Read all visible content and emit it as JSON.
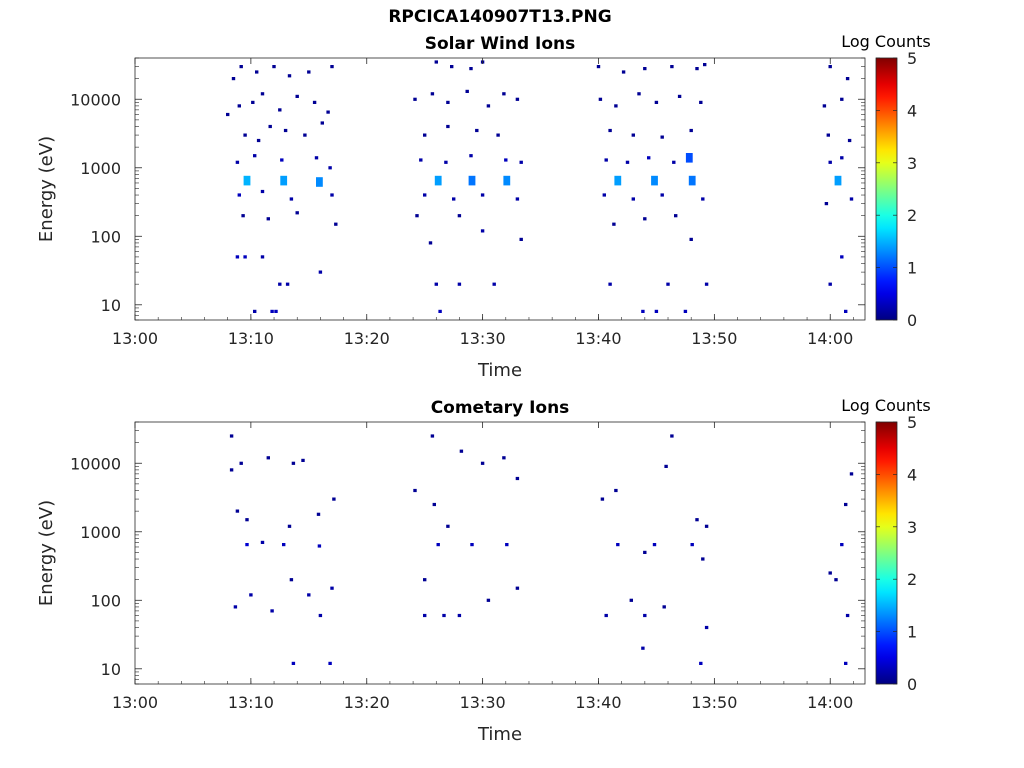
{
  "figure": {
    "title": "RPCICA140907T13.PNG"
  },
  "panels": [
    {
      "title": "Solar Wind Ions",
      "xlabel": "Time",
      "ylabel": "Energy (eV)",
      "colorbar_label": "Log Counts"
    },
    {
      "title": "Cometary Ions",
      "xlabel": "Time",
      "ylabel": "Energy (eV)",
      "colorbar_label": "Log Counts"
    }
  ],
  "chart_data": [
    {
      "type": "heatmap",
      "title": "Solar Wind Ions",
      "xlabel": "Time",
      "ylabel": "Energy (eV)",
      "xlim": [
        "13:00",
        "14:03"
      ],
      "xticks": [
        "13:00",
        "13:10",
        "13:20",
        "13:30",
        "13:40",
        "13:50",
        "14:00"
      ],
      "ylim": [
        6,
        40000
      ],
      "yscale": "log",
      "yticks": [
        10,
        100,
        1000,
        10000
      ],
      "ytick_labels": [
        "10",
        "100",
        "1000",
        "10000"
      ],
      "colorbar": {
        "label": "Log Counts",
        "range": [
          0,
          5
        ],
        "ticks": [
          0,
          1,
          2,
          3,
          4,
          5
        ],
        "colormap": "jet"
      },
      "points": [
        {
          "t": "13:09:10",
          "e": 30000,
          "v": 0.1
        },
        {
          "t": "13:08:30",
          "e": 20000,
          "v": 0.1
        },
        {
          "t": "13:10:30",
          "e": 25000,
          "v": 0.1
        },
        {
          "t": "13:12:00",
          "e": 30000,
          "v": 0.1
        },
        {
          "t": "13:13:20",
          "e": 22000,
          "v": 0.1
        },
        {
          "t": "13:15:00",
          "e": 25000,
          "v": 0.1
        },
        {
          "t": "13:17:00",
          "e": 30000,
          "v": 0.1
        },
        {
          "t": "13:08:00",
          "e": 6000,
          "v": 0.1
        },
        {
          "t": "13:09:00",
          "e": 8000,
          "v": 0.1
        },
        {
          "t": "13:10:10",
          "e": 9000,
          "v": 0.1
        },
        {
          "t": "13:11:00",
          "e": 12000,
          "v": 0.1
        },
        {
          "t": "13:12:30",
          "e": 7000,
          "v": 0.1
        },
        {
          "t": "13:14:00",
          "e": 11000,
          "v": 0.1
        },
        {
          "t": "13:15:30",
          "e": 9000,
          "v": 0.1
        },
        {
          "t": "13:16:40",
          "e": 6500,
          "v": 0.1
        },
        {
          "t": "13:09:30",
          "e": 3000,
          "v": 0.1
        },
        {
          "t": "13:10:40",
          "e": 2500,
          "v": 0.1
        },
        {
          "t": "13:11:40",
          "e": 4000,
          "v": 0.1
        },
        {
          "t": "13:13:00",
          "e": 3500,
          "v": 0.1
        },
        {
          "t": "13:14:40",
          "e": 3000,
          "v": 0.1
        },
        {
          "t": "13:16:10",
          "e": 4500,
          "v": 0.1
        },
        {
          "t": "13:08:50",
          "e": 1200,
          "v": 0.2
        },
        {
          "t": "13:10:20",
          "e": 1500,
          "v": 0.2
        },
        {
          "t": "13:12:40",
          "e": 1300,
          "v": 0.3
        },
        {
          "t": "13:15:40",
          "e": 1400,
          "v": 0.2
        },
        {
          "t": "13:16:50",
          "e": 1000,
          "v": 0.2
        },
        {
          "t": "13:09:40",
          "e": 650,
          "v": 1.5
        },
        {
          "t": "13:12:50",
          "e": 650,
          "v": 1.4
        },
        {
          "t": "13:15:55",
          "e": 620,
          "v": 1.3
        },
        {
          "t": "13:09:00",
          "e": 400,
          "v": 0.3
        },
        {
          "t": "13:11:00",
          "e": 450,
          "v": 0.2
        },
        {
          "t": "13:13:30",
          "e": 350,
          "v": 0.2
        },
        {
          "t": "13:17:00",
          "e": 400,
          "v": 0.2
        },
        {
          "t": "13:09:20",
          "e": 200,
          "v": 0.1
        },
        {
          "t": "13:11:30",
          "e": 180,
          "v": 0.1
        },
        {
          "t": "13:14:00",
          "e": 220,
          "v": 0.1
        },
        {
          "t": "13:17:20",
          "e": 150,
          "v": 0.1
        },
        {
          "t": "13:08:50",
          "e": 50,
          "v": 0.3
        },
        {
          "t": "13:09:30",
          "e": 50,
          "v": 0.3
        },
        {
          "t": "13:11:00",
          "e": 50,
          "v": 0.2
        },
        {
          "t": "13:12:30",
          "e": 20,
          "v": 0.2
        },
        {
          "t": "13:13:10",
          "e": 20,
          "v": 0.2
        },
        {
          "t": "13:16:00",
          "e": 30,
          "v": 0.2
        },
        {
          "t": "13:10:20",
          "e": 8,
          "v": 0.2
        },
        {
          "t": "13:11:50",
          "e": 8,
          "v": 0.3
        },
        {
          "t": "13:12:10",
          "e": 8,
          "v": 0.3
        },
        {
          "t": "13:26:00",
          "e": 35000,
          "v": 0.1
        },
        {
          "t": "13:27:20",
          "e": 30000,
          "v": 0.1
        },
        {
          "t": "13:29:00",
          "e": 28000,
          "v": 0.1
        },
        {
          "t": "13:30:00",
          "e": 35000,
          "v": 0.1
        },
        {
          "t": "13:24:10",
          "e": 10000,
          "v": 0.1
        },
        {
          "t": "13:25:40",
          "e": 12000,
          "v": 0.1
        },
        {
          "t": "13:27:00",
          "e": 9000,
          "v": 0.1
        },
        {
          "t": "13:28:40",
          "e": 13000,
          "v": 0.1
        },
        {
          "t": "13:30:30",
          "e": 8000,
          "v": 0.1
        },
        {
          "t": "13:31:50",
          "e": 12000,
          "v": 0.1
        },
        {
          "t": "13:33:00",
          "e": 10000,
          "v": 0.1
        },
        {
          "t": "13:25:00",
          "e": 3000,
          "v": 0.1
        },
        {
          "t": "13:27:00",
          "e": 4000,
          "v": 0.1
        },
        {
          "t": "13:29:30",
          "e": 3500,
          "v": 0.1
        },
        {
          "t": "13:31:20",
          "e": 3000,
          "v": 0.1
        },
        {
          "t": "13:24:40",
          "e": 1300,
          "v": 0.2
        },
        {
          "t": "13:26:50",
          "e": 1200,
          "v": 0.2
        },
        {
          "t": "13:29:00",
          "e": 1500,
          "v": 0.2
        },
        {
          "t": "13:32:00",
          "e": 1300,
          "v": 0.3
        },
        {
          "t": "13:33:20",
          "e": 1200,
          "v": 0.2
        },
        {
          "t": "13:26:10",
          "e": 650,
          "v": 1.4
        },
        {
          "t": "13:29:05",
          "e": 650,
          "v": 1.2
        },
        {
          "t": "13:32:05",
          "e": 650,
          "v": 1.3
        },
        {
          "t": "13:25:00",
          "e": 400,
          "v": 0.2
        },
        {
          "t": "13:27:30",
          "e": 350,
          "v": 0.2
        },
        {
          "t": "13:30:00",
          "e": 400,
          "v": 0.2
        },
        {
          "t": "13:33:00",
          "e": 350,
          "v": 0.2
        },
        {
          "t": "13:24:20",
          "e": 200,
          "v": 0.1
        },
        {
          "t": "13:28:00",
          "e": 200,
          "v": 0.1
        },
        {
          "t": "13:30:00",
          "e": 120,
          "v": 0.2
        },
        {
          "t": "13:33:20",
          "e": 90,
          "v": 0.1
        },
        {
          "t": "13:25:30",
          "e": 80,
          "v": 0.1
        },
        {
          "t": "13:26:00",
          "e": 20,
          "v": 0.2
        },
        {
          "t": "13:28:00",
          "e": 20,
          "v": 0.2
        },
        {
          "t": "13:31:00",
          "e": 20,
          "v": 0.2
        },
        {
          "t": "13:26:20",
          "e": 8,
          "v": 0.3
        },
        {
          "t": "13:40:00",
          "e": 30000,
          "v": 0.1
        },
        {
          "t": "13:42:10",
          "e": 25000,
          "v": 0.1
        },
        {
          "t": "13:44:00",
          "e": 28000,
          "v": 0.1
        },
        {
          "t": "13:46:20",
          "e": 30000,
          "v": 0.1
        },
        {
          "t": "13:48:30",
          "e": 28000,
          "v": 0.1
        },
        {
          "t": "13:49:10",
          "e": 32000,
          "v": 0.1
        },
        {
          "t": "13:40:10",
          "e": 10000,
          "v": 0.1
        },
        {
          "t": "13:41:30",
          "e": 8000,
          "v": 0.1
        },
        {
          "t": "13:43:30",
          "e": 12000,
          "v": 0.1
        },
        {
          "t": "13:45:00",
          "e": 9000,
          "v": 0.1
        },
        {
          "t": "13:47:00",
          "e": 11000,
          "v": 0.1
        },
        {
          "t": "13:48:50",
          "e": 9000,
          "v": 0.1
        },
        {
          "t": "13:41:00",
          "e": 3500,
          "v": 0.1
        },
        {
          "t": "13:43:00",
          "e": 3000,
          "v": 0.1
        },
        {
          "t": "13:45:30",
          "e": 2800,
          "v": 0.1
        },
        {
          "t": "13:48:00",
          "e": 3500,
          "v": 0.1
        },
        {
          "t": "13:40:40",
          "e": 1300,
          "v": 0.2
        },
        {
          "t": "13:42:30",
          "e": 1200,
          "v": 0.2
        },
        {
          "t": "13:44:20",
          "e": 1400,
          "v": 0.3
        },
        {
          "t": "13:46:30",
          "e": 1200,
          "v": 0.2
        },
        {
          "t": "13:47:50",
          "e": 1400,
          "v": 1.0
        },
        {
          "t": "13:41:40",
          "e": 650,
          "v": 1.4
        },
        {
          "t": "13:44:50",
          "e": 650,
          "v": 1.3
        },
        {
          "t": "13:48:05",
          "e": 650,
          "v": 1.2
        },
        {
          "t": "13:40:30",
          "e": 400,
          "v": 0.2
        },
        {
          "t": "13:43:00",
          "e": 350,
          "v": 0.2
        },
        {
          "t": "13:45:30",
          "e": 400,
          "v": 0.2
        },
        {
          "t": "13:49:00",
          "e": 350,
          "v": 0.2
        },
        {
          "t": "13:41:20",
          "e": 150,
          "v": 0.1
        },
        {
          "t": "13:44:00",
          "e": 180,
          "v": 0.1
        },
        {
          "t": "13:46:40",
          "e": 200,
          "v": 0.1
        },
        {
          "t": "13:48:00",
          "e": 90,
          "v": 0.1
        },
        {
          "t": "13:41:00",
          "e": 20,
          "v": 0.2
        },
        {
          "t": "13:46:00",
          "e": 20,
          "v": 0.2
        },
        {
          "t": "13:49:20",
          "e": 20,
          "v": 0.2
        },
        {
          "t": "13:43:50",
          "e": 8,
          "v": 0.3
        },
        {
          "t": "13:45:00",
          "e": 8,
          "v": 0.3
        },
        {
          "t": "13:47:30",
          "e": 8,
          "v": 0.3
        },
        {
          "t": "14:00:00",
          "e": 30000,
          "v": 0.1
        },
        {
          "t": "14:01:30",
          "e": 20000,
          "v": 0.1
        },
        {
          "t": "13:59:30",
          "e": 8000,
          "v": 0.1
        },
        {
          "t": "14:01:00",
          "e": 10000,
          "v": 0.1
        },
        {
          "t": "13:59:50",
          "e": 3000,
          "v": 0.1
        },
        {
          "t": "14:01:40",
          "e": 2500,
          "v": 0.1
        },
        {
          "t": "14:00:00",
          "e": 1200,
          "v": 0.2
        },
        {
          "t": "14:01:00",
          "e": 1400,
          "v": 0.2
        },
        {
          "t": "14:00:40",
          "e": 650,
          "v": 1.4
        },
        {
          "t": "14:01:50",
          "e": 350,
          "v": 0.2
        },
        {
          "t": "13:59:40",
          "e": 300,
          "v": 0.1
        },
        {
          "t": "14:01:00",
          "e": 50,
          "v": 0.3
        },
        {
          "t": "14:00:00",
          "e": 20,
          "v": 0.2
        },
        {
          "t": "14:01:20",
          "e": 8,
          "v": 0.3
        }
      ]
    },
    {
      "type": "heatmap",
      "title": "Cometary Ions",
      "xlabel": "Time",
      "ylabel": "Energy (eV)",
      "xlim": [
        "13:00",
        "14:03"
      ],
      "xticks": [
        "13:00",
        "13:10",
        "13:20",
        "13:30",
        "13:40",
        "13:50",
        "14:00"
      ],
      "ylim": [
        6,
        40000
      ],
      "yscale": "log",
      "yticks": [
        10,
        100,
        1000,
        10000
      ],
      "ytick_labels": [
        "10",
        "100",
        "1000",
        "10000"
      ],
      "colorbar": {
        "label": "Log Counts",
        "range": [
          0,
          5
        ],
        "ticks": [
          0,
          1,
          2,
          3,
          4,
          5
        ],
        "colormap": "jet"
      },
      "points": [
        {
          "t": "13:08:20",
          "e": 25000,
          "v": 0.1
        },
        {
          "t": "13:09:10",
          "e": 10000,
          "v": 0.1
        },
        {
          "t": "13:08:20",
          "e": 8000,
          "v": 0.1
        },
        {
          "t": "13:11:30",
          "e": 12000,
          "v": 0.1
        },
        {
          "t": "13:13:40",
          "e": 10000,
          "v": 0.1
        },
        {
          "t": "13:14:30",
          "e": 11000,
          "v": 0.1
        },
        {
          "t": "13:08:50",
          "e": 2000,
          "v": 0.1
        },
        {
          "t": "13:09:40",
          "e": 1500,
          "v": 0.1
        },
        {
          "t": "13:13:20",
          "e": 1200,
          "v": 0.1
        },
        {
          "t": "13:15:50",
          "e": 1800,
          "v": 0.1
        },
        {
          "t": "13:17:10",
          "e": 3000,
          "v": 0.1
        },
        {
          "t": "13:09:40",
          "e": 650,
          "v": 0.4
        },
        {
          "t": "13:12:50",
          "e": 650,
          "v": 0.3
        },
        {
          "t": "13:15:55",
          "e": 620,
          "v": 0.3
        },
        {
          "t": "13:11:00",
          "e": 700,
          "v": 0.2
        },
        {
          "t": "13:10:00",
          "e": 120,
          "v": 0.2
        },
        {
          "t": "13:13:30",
          "e": 200,
          "v": 0.1
        },
        {
          "t": "13:15:00",
          "e": 120,
          "v": 0.2
        },
        {
          "t": "13:17:00",
          "e": 150,
          "v": 0.2
        },
        {
          "t": "13:08:40",
          "e": 80,
          "v": 0.2
        },
        {
          "t": "13:11:50",
          "e": 70,
          "v": 0.2
        },
        {
          "t": "13:16:00",
          "e": 60,
          "v": 0.2
        },
        {
          "t": "13:13:40",
          "e": 12,
          "v": 0.3
        },
        {
          "t": "13:16:50",
          "e": 12,
          "v": 0.3
        },
        {
          "t": "13:25:40",
          "e": 25000,
          "v": 0.1
        },
        {
          "t": "13:24:10",
          "e": 4000,
          "v": 0.1
        },
        {
          "t": "13:25:50",
          "e": 2500,
          "v": 0.1
        },
        {
          "t": "13:28:10",
          "e": 15000,
          "v": 0.1
        },
        {
          "t": "13:30:00",
          "e": 10000,
          "v": 0.1
        },
        {
          "t": "13:31:50",
          "e": 12000,
          "v": 0.1
        },
        {
          "t": "13:33:00",
          "e": 6000,
          "v": 0.1
        },
        {
          "t": "13:26:10",
          "e": 650,
          "v": 0.3
        },
        {
          "t": "13:29:05",
          "e": 650,
          "v": 0.3
        },
        {
          "t": "13:32:05",
          "e": 650,
          "v": 0.3
        },
        {
          "t": "13:27:00",
          "e": 1200,
          "v": 0.1
        },
        {
          "t": "13:25:00",
          "e": 200,
          "v": 0.1
        },
        {
          "t": "13:26:40",
          "e": 60,
          "v": 0.2
        },
        {
          "t": "13:25:00",
          "e": 60,
          "v": 0.2
        },
        {
          "t": "13:28:00",
          "e": 60,
          "v": 0.2
        },
        {
          "t": "13:30:30",
          "e": 100,
          "v": 0.1
        },
        {
          "t": "13:33:00",
          "e": 150,
          "v": 0.1
        },
        {
          "t": "13:40:20",
          "e": 3000,
          "v": 0.1
        },
        {
          "t": "13:41:30",
          "e": 4000,
          "v": 0.1
        },
        {
          "t": "13:46:20",
          "e": 25000,
          "v": 0.1
        },
        {
          "t": "13:45:50",
          "e": 9000,
          "v": 0.1
        },
        {
          "t": "13:48:30",
          "e": 1500,
          "v": 0.1
        },
        {
          "t": "13:49:20",
          "e": 1200,
          "v": 0.1
        },
        {
          "t": "13:41:40",
          "e": 650,
          "v": 0.3
        },
        {
          "t": "13:44:50",
          "e": 650,
          "v": 0.3
        },
        {
          "t": "13:48:05",
          "e": 650,
          "v": 0.3
        },
        {
          "t": "13:49:00",
          "e": 400,
          "v": 0.1
        },
        {
          "t": "13:44:00",
          "e": 500,
          "v": 0.1
        },
        {
          "t": "13:40:40",
          "e": 60,
          "v": 0.2
        },
        {
          "t": "13:42:50",
          "e": 100,
          "v": 0.1
        },
        {
          "t": "13:44:00",
          "e": 60,
          "v": 0.2
        },
        {
          "t": "13:45:40",
          "e": 80,
          "v": 0.1
        },
        {
          "t": "13:43:50",
          "e": 20,
          "v": 0.2
        },
        {
          "t": "13:49:20",
          "e": 40,
          "v": 0.2
        },
        {
          "t": "13:48:50",
          "e": 12,
          "v": 0.3
        },
        {
          "t": "14:01:50",
          "e": 7000,
          "v": 0.1
        },
        {
          "t": "14:01:20",
          "e": 2500,
          "v": 0.1
        },
        {
          "t": "14:01:00",
          "e": 650,
          "v": 0.3
        },
        {
          "t": "14:00:30",
          "e": 200,
          "v": 0.1
        },
        {
          "t": "14:00:00",
          "e": 250,
          "v": 0.1
        },
        {
          "t": "14:01:30",
          "e": 60,
          "v": 0.2
        },
        {
          "t": "14:01:20",
          "e": 12,
          "v": 0.3
        }
      ]
    }
  ]
}
